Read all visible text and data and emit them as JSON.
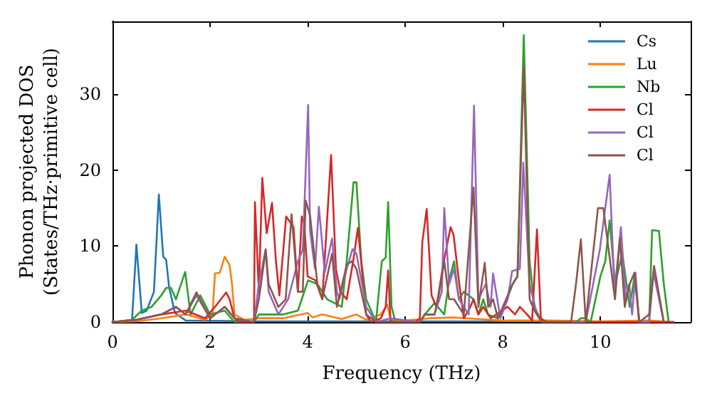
{
  "chart_data": {
    "type": "line",
    "xlabel": "Frequency (THz)",
    "ylabel": "Phonon projected DOS\n(States/THz·primitive cell)",
    "xlim": [
      0,
      11.85
    ],
    "ylim": [
      0,
      39.6
    ],
    "xticks": [
      0,
      2,
      4,
      6,
      8,
      10
    ],
    "yticks": [
      0,
      10,
      20,
      30
    ],
    "grid": false,
    "legend": "top right",
    "marker": "none",
    "line_style": "solid",
    "series": [
      {
        "name": "Cs",
        "color": "#1f77b4",
        "x": [
          0,
          0.4,
          0.49,
          0.6,
          0.7,
          0.85,
          0.95,
          1.04,
          1.1,
          1.16,
          1.28,
          1.5,
          3,
          6,
          9,
          11.5
        ],
        "values": [
          0,
          0.2,
          10.2,
          1.2,
          1.5,
          4,
          16.8,
          8.6,
          8.2,
          4.6,
          1.2,
          0.2,
          0.1,
          0.1,
          0.1,
          0
        ]
      },
      {
        "name": "Lu",
        "color": "#ff7f0e",
        "x": [
          0,
          0.5,
          1,
          1.5,
          1.9,
          2.05,
          2.1,
          2.2,
          2.3,
          2.4,
          2.45,
          2.5,
          2.7,
          3,
          3.5,
          4,
          4.1,
          4.3,
          4.7,
          5,
          5.2,
          5.5,
          5.63,
          5.7,
          6,
          6.5,
          7,
          7.5,
          8,
          9,
          10,
          11,
          11.5
        ],
        "values": [
          0,
          0.1,
          0.5,
          1,
          0.3,
          1,
          6.4,
          6.5,
          8.6,
          7.5,
          5,
          1,
          0.3,
          0.5,
          0.5,
          1.2,
          0.6,
          1,
          0.4,
          1,
          0.3,
          1,
          2.3,
          0.3,
          0.2,
          0.5,
          0.6,
          0.4,
          0.2,
          0.2,
          0.1,
          0.2,
          0
        ]
      },
      {
        "name": "Nb",
        "color": "#2ca02c",
        "x": [
          0,
          0.4,
          0.6,
          0.8,
          1,
          1.1,
          1.2,
          1.3,
          1.49,
          1.6,
          1.8,
          2,
          2.3,
          2.5,
          2.9,
          3,
          3.5,
          3.8,
          4.01,
          4.2,
          4.4,
          4.7,
          4.8,
          4.94,
          5,
          5.1,
          5.2,
          5.4,
          5.52,
          5.6,
          5.65,
          5.72,
          5.8,
          6.3,
          6.4,
          6.6,
          6.8,
          6.9,
          7,
          7.1,
          7.2,
          7.4,
          7.5,
          7.6,
          7.7,
          7.9,
          8,
          8.2,
          8.3,
          8.43,
          8.55,
          8.65,
          8.8,
          9.5,
          9.6,
          9.7,
          9.8,
          10,
          10.1,
          10.19,
          10.3,
          10.45,
          10.6,
          10.7,
          10.8,
          11,
          11.06,
          11.2,
          11.3,
          11.4
        ],
        "values": [
          0,
          0.3,
          1.5,
          2,
          3.5,
          4.5,
          4.5,
          3,
          6.6,
          1,
          3.5,
          1,
          1.5,
          0,
          0,
          1,
          1,
          1.5,
          5.5,
          5,
          3,
          2,
          8,
          18.4,
          18.4,
          8,
          3,
          0,
          8,
          8.5,
          15.8,
          2,
          0,
          0,
          1,
          2.5,
          1,
          5.5,
          8,
          3,
          4,
          3,
          1,
          3,
          1,
          0.5,
          1.5,
          5,
          6,
          37.8,
          8,
          2,
          0,
          0,
          0.5,
          0.5,
          0,
          6,
          8,
          13.4,
          5,
          9,
          2,
          6,
          0,
          0,
          12.1,
          12,
          5,
          0
        ]
      },
      {
        "name": "Cl",
        "color": "#d62728",
        "x": [
          0,
          0.5,
          1,
          1.5,
          1.9,
          2.1,
          2.33,
          2.4,
          2.5,
          2.6,
          2.9,
          2.92,
          3,
          3.07,
          3.16,
          3.27,
          3.35,
          3.42,
          3.56,
          3.71,
          3.8,
          3.88,
          3.93,
          4,
          4.16,
          4.3,
          4.48,
          4.58,
          4.67,
          4.8,
          4.94,
          5.03,
          5.2,
          5.3,
          5.5,
          5.6,
          5.65,
          5.7,
          6.2,
          6.3,
          6.35,
          6.44,
          6.54,
          6.64,
          6.79,
          6.93,
          6.99,
          7.09,
          7.2,
          7.32,
          7.4,
          7.5,
          7.6,
          7.75,
          8.1,
          8.25,
          8.35,
          8.5,
          8.6,
          8.7,
          8.78,
          8.9,
          11.5
        ],
        "values": [
          0,
          0.3,
          1,
          1.5,
          0.5,
          2,
          3.9,
          3,
          0.5,
          0,
          0,
          15.8,
          4,
          19,
          11.7,
          15.7,
          8,
          3.5,
          13.9,
          12.5,
          4,
          13.9,
          13,
          6,
          5.5,
          3,
          22,
          7,
          4,
          3,
          8.3,
          12.4,
          1,
          0,
          0.5,
          2,
          6.8,
          0,
          0,
          0.5,
          10.5,
          14.9,
          3.5,
          2,
          8,
          12.5,
          11.5,
          6,
          0.5,
          1.8,
          3,
          1,
          2,
          0.5,
          2,
          1,
          2,
          1,
          0.2,
          12.2,
          0.5,
          0,
          0
        ]
      },
      {
        "name": "Cl",
        "color": "#9467bd",
        "x": [
          0,
          0.5,
          1,
          1.3,
          1.5,
          1.72,
          2,
          2.3,
          2.5,
          2.9,
          3,
          3.14,
          3.2,
          3.4,
          3.6,
          3.8,
          3.9,
          4.01,
          4.05,
          4.15,
          4.23,
          4.35,
          4.5,
          4.6,
          4.65,
          4.8,
          4.92,
          5,
          5.2,
          5.4,
          5.7,
          6.3,
          6.4,
          6.6,
          6.75,
          6.8,
          6.9,
          7,
          7.1,
          7.3,
          7.41,
          7.5,
          7.65,
          7.75,
          7.8,
          7.95,
          8.1,
          8.19,
          8.35,
          8.42,
          8.55,
          8.7,
          8.8,
          9.7,
          9.99,
          10.19,
          10.29,
          10.42,
          10.52,
          10.59,
          10.65,
          10.72,
          10.79,
          11,
          11.09,
          11.3
        ],
        "values": [
          0,
          0.3,
          1,
          2,
          1,
          3.5,
          0.5,
          2,
          0.5,
          0,
          5,
          9.6,
          4,
          1,
          3,
          8,
          9.5,
          28.6,
          12,
          7,
          15.2,
          6.5,
          11,
          4,
          3,
          7,
          9.6,
          9,
          2,
          0,
          0.5,
          0,
          1,
          1,
          4,
          15,
          5,
          7,
          3,
          1,
          28.5,
          3,
          5,
          2,
          6.4,
          0.5,
          3,
          6.7,
          7,
          21,
          5,
          1,
          0,
          0,
          9.6,
          19.4,
          4,
          12.5,
          3,
          5,
          1,
          6.5,
          0,
          0,
          6.5,
          0
        ]
      },
      {
        "name": "Cl",
        "color": "#8c564b",
        "x": [
          0,
          0.5,
          1,
          1.3,
          1.5,
          1.72,
          2,
          2.3,
          2.5,
          2.9,
          3,
          3.14,
          3.2,
          3.4,
          3.55,
          3.67,
          3.8,
          3.9,
          3.96,
          4.05,
          4.2,
          4.3,
          4.5,
          4.6,
          4.8,
          4.9,
          5,
          5.2,
          5.4,
          6.3,
          6.4,
          6.6,
          6.7,
          6.8,
          6.9,
          7,
          7.2,
          7.4,
          7.5,
          7.63,
          7.7,
          7.8,
          7.9,
          8.2,
          8.3,
          8.43,
          8.55,
          8.65,
          8.8,
          9.4,
          9.5,
          9.6,
          9.7,
          9.95,
          10.06,
          10.2,
          10.3,
          10.4,
          10.5,
          10.6,
          10.7,
          10.8,
          11,
          11.1,
          11.3
        ],
        "values": [
          0,
          0.3,
          1,
          2,
          1,
          3.9,
          0.5,
          2,
          0.5,
          0,
          3,
          9.5,
          5,
          2,
          3,
          14.2,
          4,
          4,
          16,
          14,
          5,
          3,
          9,
          2,
          7.5,
          8,
          7,
          1,
          0,
          0,
          1,
          1,
          4,
          8,
          3,
          3,
          1,
          17.7,
          2,
          7.8,
          2,
          3,
          0.5,
          5,
          6,
          33.6,
          3,
          1.5,
          0,
          0,
          5,
          10.9,
          0,
          15,
          15,
          8,
          3,
          11,
          2,
          5,
          6.5,
          0,
          1,
          7.4,
          0
        ]
      }
    ]
  }
}
